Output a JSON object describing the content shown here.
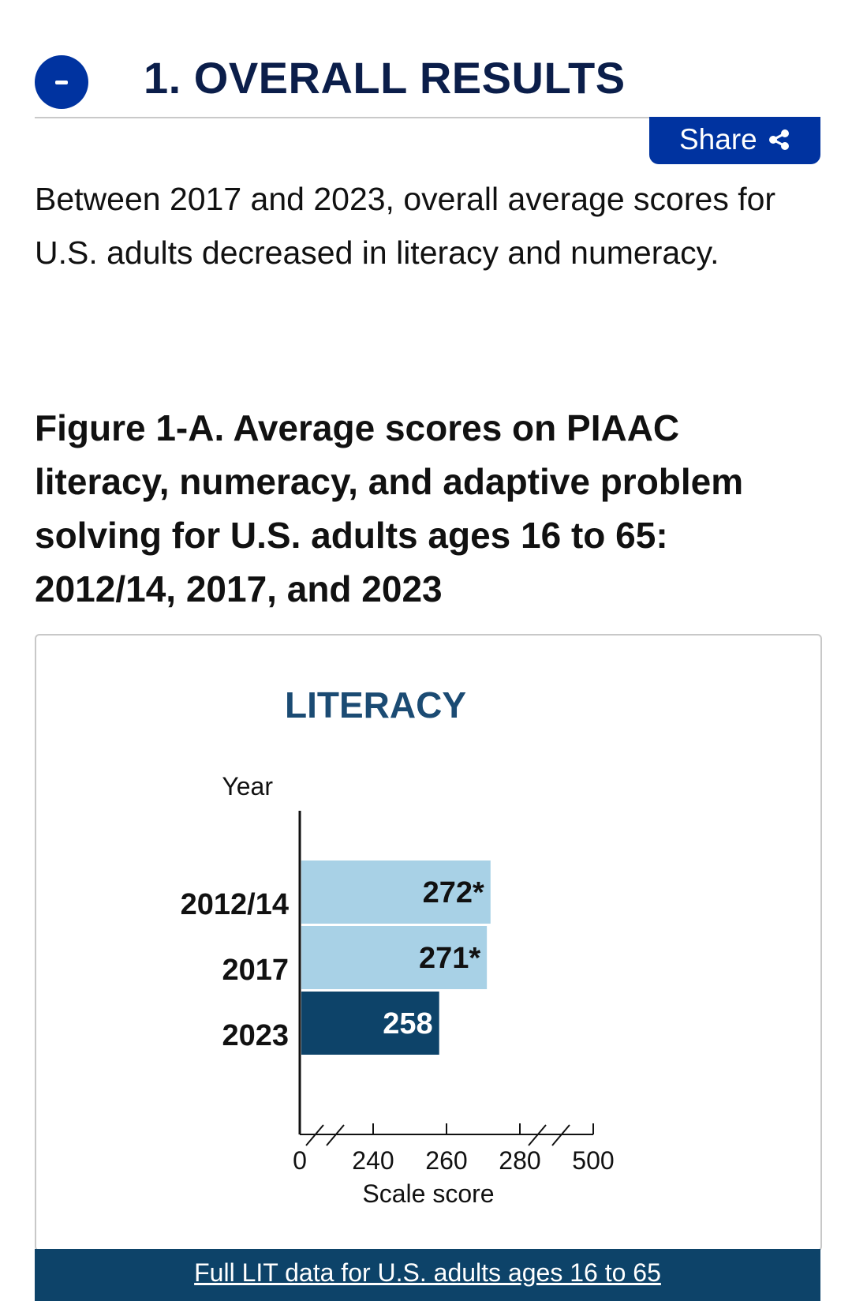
{
  "section": {
    "title": "1. OVERALL RESULTS",
    "collapse_icon": "minus-icon"
  },
  "share": {
    "label": "Share",
    "icon": "share-icon"
  },
  "intro": {
    "text": "Between 2017 and 2023, overall average scores for U.S. adults decreased in literacy and numeracy."
  },
  "figure": {
    "title": "Figure 1-A. Average scores on PIAAC literacy, numeracy, and adaptive problem solving for U.S. adults ages 16 to 65: 2012/14, 2017, and 2023"
  },
  "colors": {
    "brand_blue": "#0033a0",
    "light_bar": "#a8d1e6",
    "dark_bar": "#0d4369",
    "title_navy": "#1b4b73"
  },
  "chart_data": {
    "type": "bar",
    "orientation": "horizontal",
    "title": "LITERACY",
    "ylabel": "Year",
    "xlabel": "Scale score",
    "categories": [
      "2012/14",
      "2017",
      "2023"
    ],
    "values": [
      272,
      271,
      258
    ],
    "value_labels": [
      "272*",
      "271*",
      "258"
    ],
    "bar_colors": [
      "#a8d1e6",
      "#a8d1e6",
      "#0d4369"
    ],
    "label_colors": [
      "#111111",
      "#111111",
      "#ffffff"
    ],
    "xlim": [
      220,
      300
    ],
    "xticks": [
      240,
      260,
      280
    ],
    "xtick_labels_outer": [
      "0",
      "500"
    ],
    "axis_breaks": true,
    "grid": false,
    "legend": "none"
  },
  "data_link": {
    "label": "Full LIT data for U.S. adults ages 16 to 65"
  }
}
